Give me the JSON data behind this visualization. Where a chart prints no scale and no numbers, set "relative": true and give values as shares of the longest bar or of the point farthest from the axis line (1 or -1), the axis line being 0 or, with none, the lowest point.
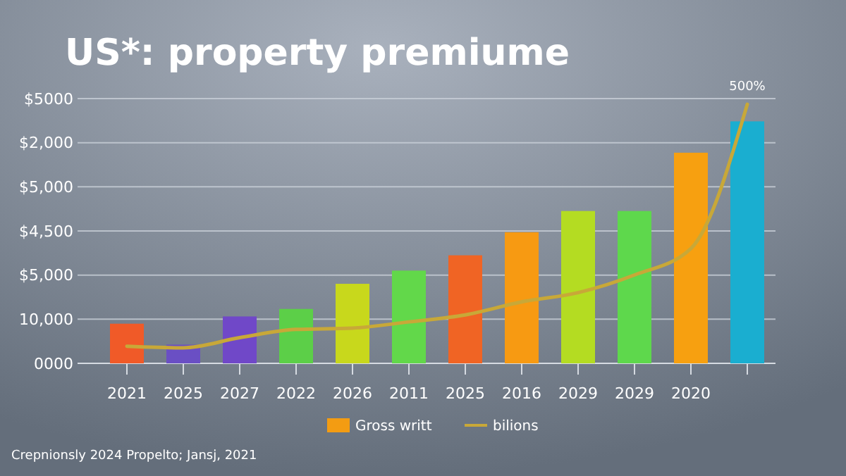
{
  "chart_data": {
    "type": "bar",
    "title": "US*: property premiume",
    "relative": true,
    "categories": [
      "2021",
      "2025",
      "2027",
      "2022",
      "2026",
      "2011",
      "2025",
      "2016",
      "2029",
      "2029",
      "2020",
      null
    ],
    "series": [
      {
        "name": "Gross writt",
        "color": "#f39c12",
        "colors": [
          "#f05a28",
          "#6a4fc4",
          "#7048c8",
          "#5ccf48",
          "#c8d81c",
          "#62d84a",
          "#f06424",
          "#f79a12",
          "#b4dc22",
          "#5ed84c",
          "#f7a010",
          "#1aaed0"
        ],
        "values": [
          0.153,
          0.072,
          0.181,
          0.21,
          0.307,
          0.358,
          0.417,
          0.506,
          0.588,
          0.588,
          0.813,
          0.934
        ]
      },
      {
        "type": "line",
        "name": "bilions",
        "color": "#c8a838",
        "values": [
          0.066,
          0.06,
          0.099,
          0.131,
          0.136,
          0.16,
          0.187,
          0.237,
          0.273,
          0.341,
          0.443,
          1
        ]
      }
    ],
    "grid": "y",
    "legend": "bottom",
    "annotations": [
      "500%",
      "Crepnionsly 2024 Propelto; Jansj, 2021",
      "0000",
      "10,000",
      "$5,000",
      "$4,500",
      "$5,000",
      "$2,000",
      "$5000"
    ]
  }
}
